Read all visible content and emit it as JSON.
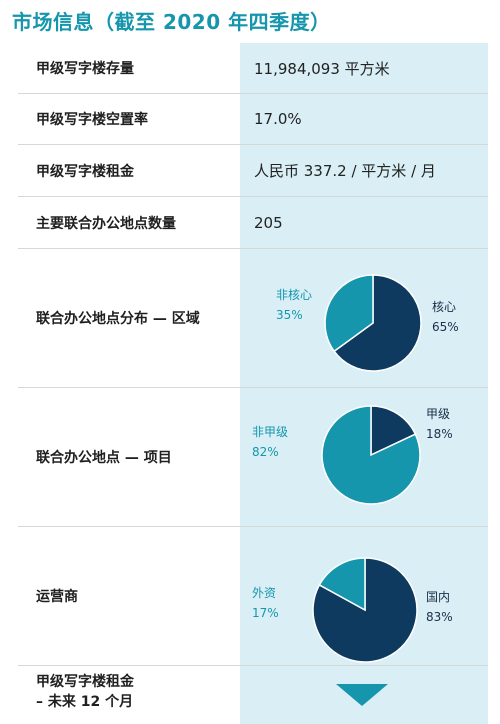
{
  "title": "市场信息（截至 2020 年四季度）",
  "rows": [
    {
      "label": "甲级写字楼存量",
      "value": "11,984,093 平方米"
    },
    {
      "label": "甲级写字楼空置率",
      "value": "17.0%"
    },
    {
      "label": "甲级写字楼租金",
      "value": "人民币 337.2 / 平方米 / 月"
    },
    {
      "label": "主要联合办公地点数量",
      "value": "205"
    }
  ],
  "pies": [
    {
      "label": "联合办公地点分布 — 区域",
      "slices": [
        {
          "name": "核心",
          "pct": "65%",
          "value": 65,
          "color": "#0e3a5f"
        },
        {
          "name": "非核心",
          "pct": "35%",
          "value": 35,
          "color": "#1596ad"
        }
      ]
    },
    {
      "label": "联合办公地点 — 项目",
      "slices": [
        {
          "name": "甲级",
          "pct": "18%",
          "value": 18,
          "color": "#0e3a5f"
        },
        {
          "name": "非甲级",
          "pct": "82%",
          "value": 82,
          "color": "#1596ad"
        }
      ]
    },
    {
      "label": "运营商",
      "slices": [
        {
          "name": "国内",
          "pct": "83%",
          "value": 83,
          "color": "#0e3a5f"
        },
        {
          "name": "外资",
          "pct": "17%",
          "value": 17,
          "color": "#1596ad"
        }
      ]
    }
  ],
  "last_row": {
    "line1": "甲级写字楼租金",
    "line2": "– 未来 12 个月"
  },
  "colors": {
    "accent": "#1596ad",
    "dark": "#0e3a5f",
    "panel": "#d9eff5"
  }
}
